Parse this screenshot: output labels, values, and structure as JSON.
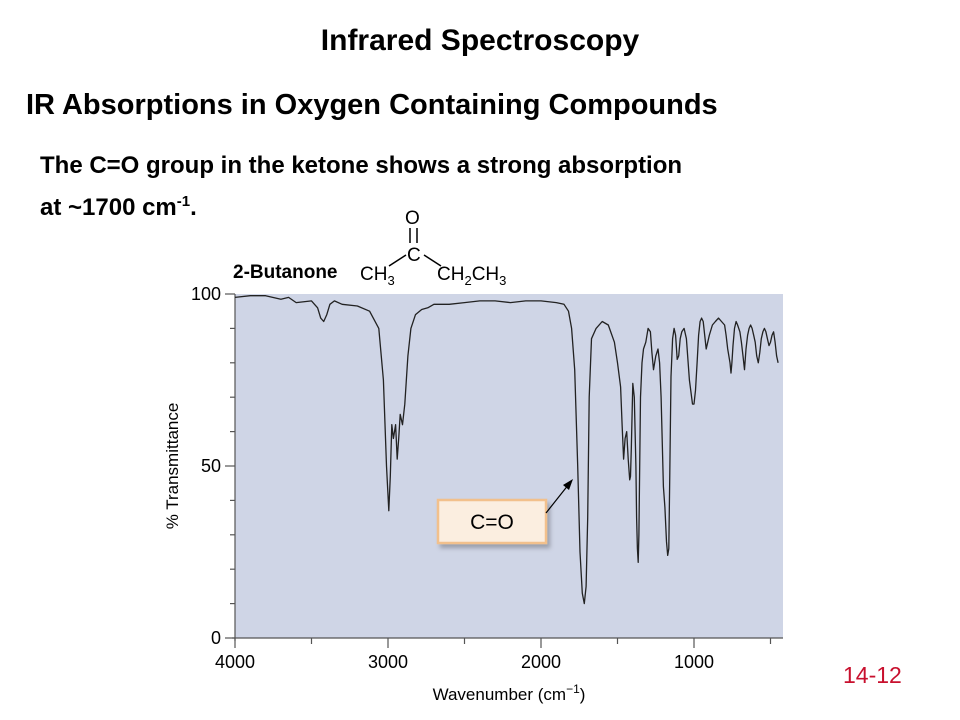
{
  "slide": {
    "title": "Infrared Spectroscopy",
    "subtitle": "IR Absorptions in Oxygen Containing Compounds",
    "description_line1": "The C=O group in the ketone shows a strong absorption",
    "description_line2_prefix": "at ~1700 cm",
    "description_superscript": "-1",
    "description_suffix": ".",
    "slide_number": "14-12"
  },
  "compound": {
    "name": "2-Butanone",
    "formula_left": "CH",
    "formula_left_sub": "3",
    "formula_center": "C",
    "formula_right_a": "CH",
    "formula_right_a_sub": "2",
    "formula_right_b": "CH",
    "formula_right_b_sub": "3",
    "carbonyl_atom": "O",
    "double_bond": "||"
  },
  "colors": {
    "plot_background": "#cfd5e6",
    "spectrum_line": "#222222",
    "callout_fill": "#fbeee0",
    "callout_border": "#f2c08c",
    "slide_number": "#c8102e"
  },
  "chart_data": {
    "type": "line",
    "xlabel": "Wavenumber (cm",
    "xlabel_superscript": "−1",
    "xlabel_suffix": ")",
    "ylabel": "% Transmittance",
    "xlim": [
      4000,
      450
    ],
    "ylim": [
      0,
      100
    ],
    "x_ticks": [
      4000,
      3000,
      2000,
      1000
    ],
    "x_tick_labels": [
      "4000",
      "3000",
      "2000",
      "1000"
    ],
    "y_ticks": [
      0,
      50,
      100
    ],
    "y_tick_labels": [
      "0",
      "50",
      "100"
    ],
    "grid": false,
    "annotation": {
      "text": "C=O",
      "x": 1717,
      "y": 10
    },
    "series": [
      {
        "x": [
          4000,
          3900,
          3800,
          3700,
          3650,
          3600,
          3500,
          3460,
          3440,
          3420,
          3400,
          3380,
          3350,
          3300,
          3200,
          3120,
          3060,
          3030,
          3010,
          2995,
          2985,
          2975,
          2965,
          2950,
          2940,
          2930,
          2920,
          2905,
          2890,
          2870,
          2850,
          2820,
          2780,
          2740,
          2700,
          2600,
          2500,
          2400,
          2300,
          2200,
          2100,
          2000,
          1900,
          1850,
          1820,
          1800,
          1780,
          1760,
          1745,
          1730,
          1717,
          1705,
          1695,
          1685,
          1670,
          1640,
          1600,
          1560,
          1520,
          1500,
          1480,
          1470,
          1460,
          1450,
          1440,
          1430,
          1420,
          1415,
          1410,
          1400,
          1390,
          1380,
          1375,
          1370,
          1365,
          1360,
          1350,
          1340,
          1330,
          1315,
          1300,
          1285,
          1275,
          1265,
          1250,
          1235,
          1225,
          1215,
          1200,
          1190,
          1180,
          1172,
          1165,
          1158,
          1150,
          1140,
          1130,
          1120,
          1110,
          1100,
          1090,
          1080,
          1065,
          1050,
          1030,
          1010,
          1000,
          990,
          980,
          970,
          960,
          950,
          940,
          930,
          920,
          900,
          880,
          860,
          840,
          820,
          800,
          790,
          780,
          765,
          758,
          752,
          745,
          735,
          725,
          715,
          700,
          690,
          680,
          670,
          660,
          650,
          640,
          630,
          620,
          610,
          600,
          590,
          580,
          570,
          560,
          550,
          540,
          530,
          520,
          510,
          500,
          490,
          480,
          470,
          460,
          450
        ],
        "y": [
          99,
          99.5,
          99.5,
          98.5,
          99,
          97.5,
          98,
          96,
          93,
          92,
          94,
          97,
          98,
          97,
          96.5,
          95,
          90,
          75,
          50,
          37,
          47,
          62,
          58,
          62,
          52,
          58,
          65,
          62,
          68,
          82,
          90,
          94,
          95.5,
          96,
          97,
          97,
          97.5,
          98,
          98,
          97.5,
          98,
          98,
          97.5,
          97,
          95,
          90,
          78,
          50,
          25,
          13,
          10,
          15,
          35,
          70,
          87,
          90,
          92,
          91,
          86,
          80,
          73,
          62,
          52,
          58,
          60,
          52,
          46,
          47,
          55,
          74,
          70,
          50,
          35,
          26,
          22,
          30,
          70,
          80,
          84,
          86,
          90,
          89,
          83,
          78,
          82,
          84,
          80,
          70,
          44,
          38,
          28,
          24,
          26,
          48,
          76,
          87,
          90,
          88,
          81,
          82,
          87,
          89,
          90,
          87,
          75,
          68,
          68,
          72,
          80,
          88,
          92,
          93,
          92,
          88,
          84,
          88,
          91,
          92,
          93,
          92,
          91,
          88,
          84,
          80,
          77,
          80,
          85,
          90,
          92,
          91,
          89,
          86,
          82,
          78,
          84,
          88,
          90,
          91,
          90,
          88,
          86,
          82,
          80,
          83,
          87,
          89,
          90,
          89,
          87,
          85,
          86,
          88,
          89,
          86,
          82,
          80
        ]
      }
    ]
  }
}
